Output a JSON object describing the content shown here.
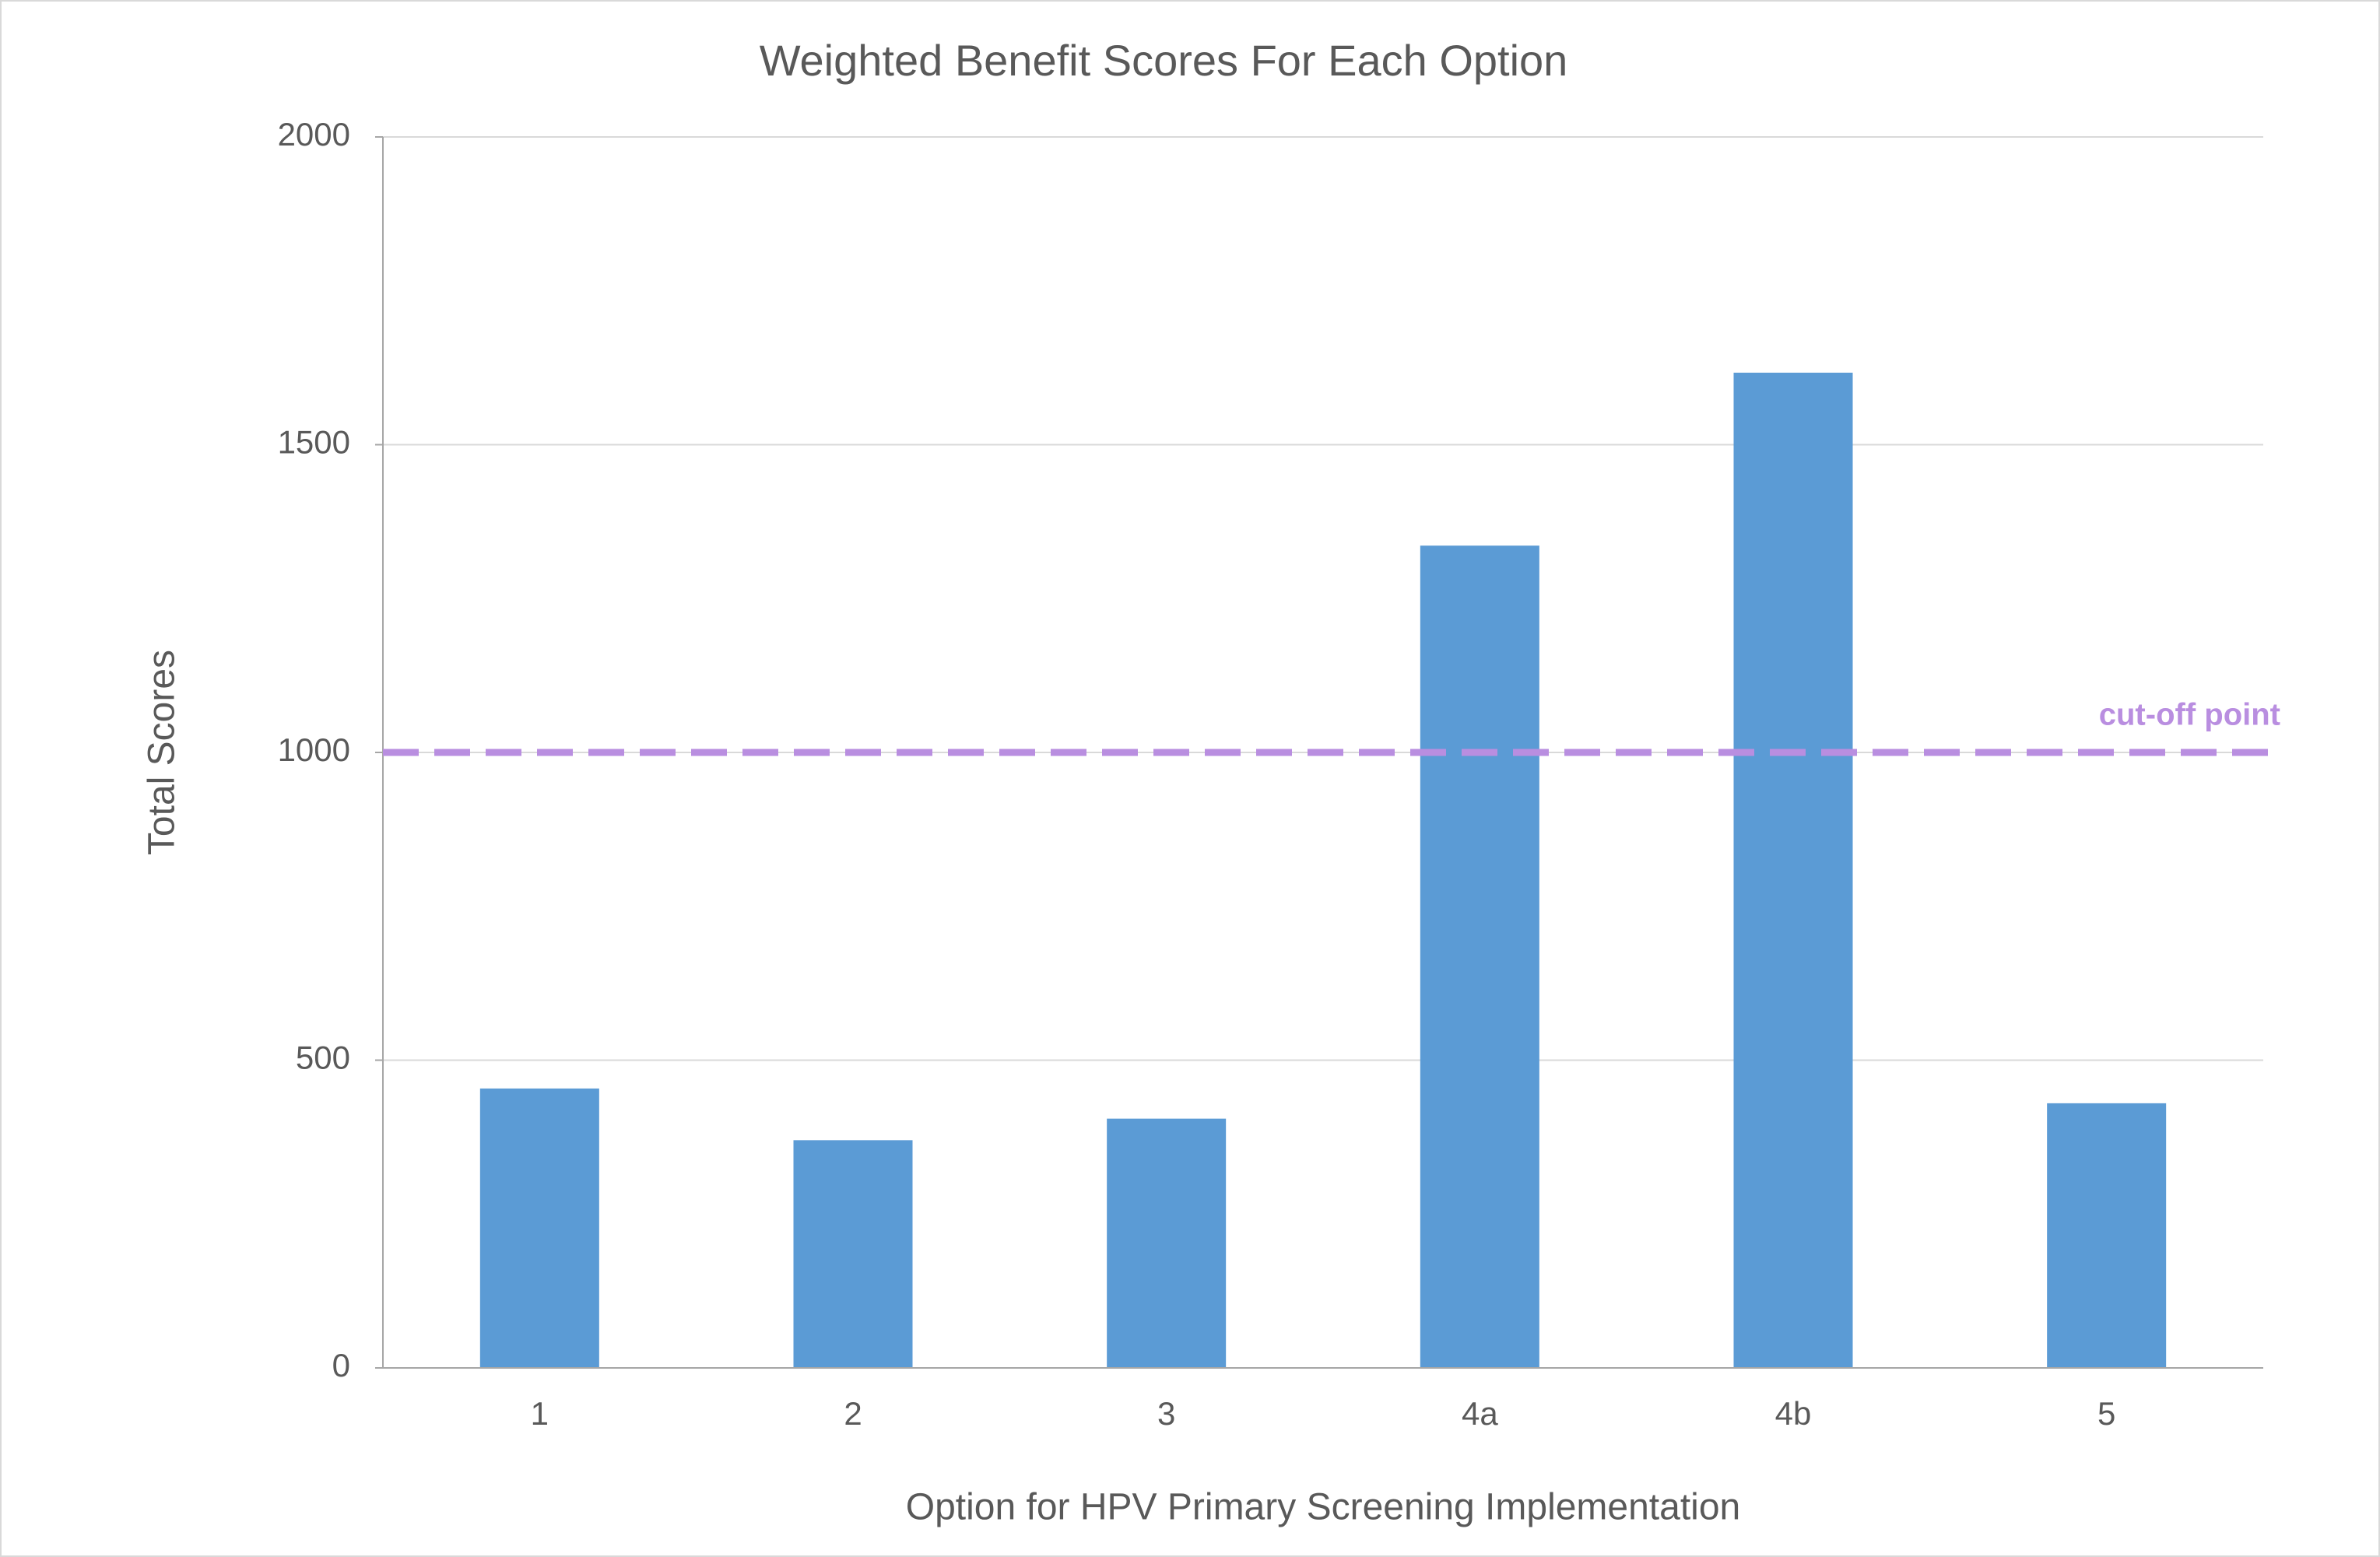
{
  "chart_data": {
    "type": "bar",
    "title": "Weighted Benefit Scores For Each Option",
    "x_label": "Option for HPV Primary Screening Implementation",
    "y_label": "Total Scores",
    "categories": [
      "1",
      "2",
      "3",
      "4a",
      "4b",
      "5"
    ],
    "values": [
      454,
      370,
      405,
      1336,
      1617,
      430
    ],
    "color": "#5b9bd5",
    "ylim": [
      0,
      2000
    ],
    "yticks": [
      0,
      500,
      1000,
      1500,
      2000
    ],
    "grid": true,
    "reference_line": {
      "value": 1000,
      "label": "cut-off point",
      "color": "#b98ee0"
    }
  }
}
